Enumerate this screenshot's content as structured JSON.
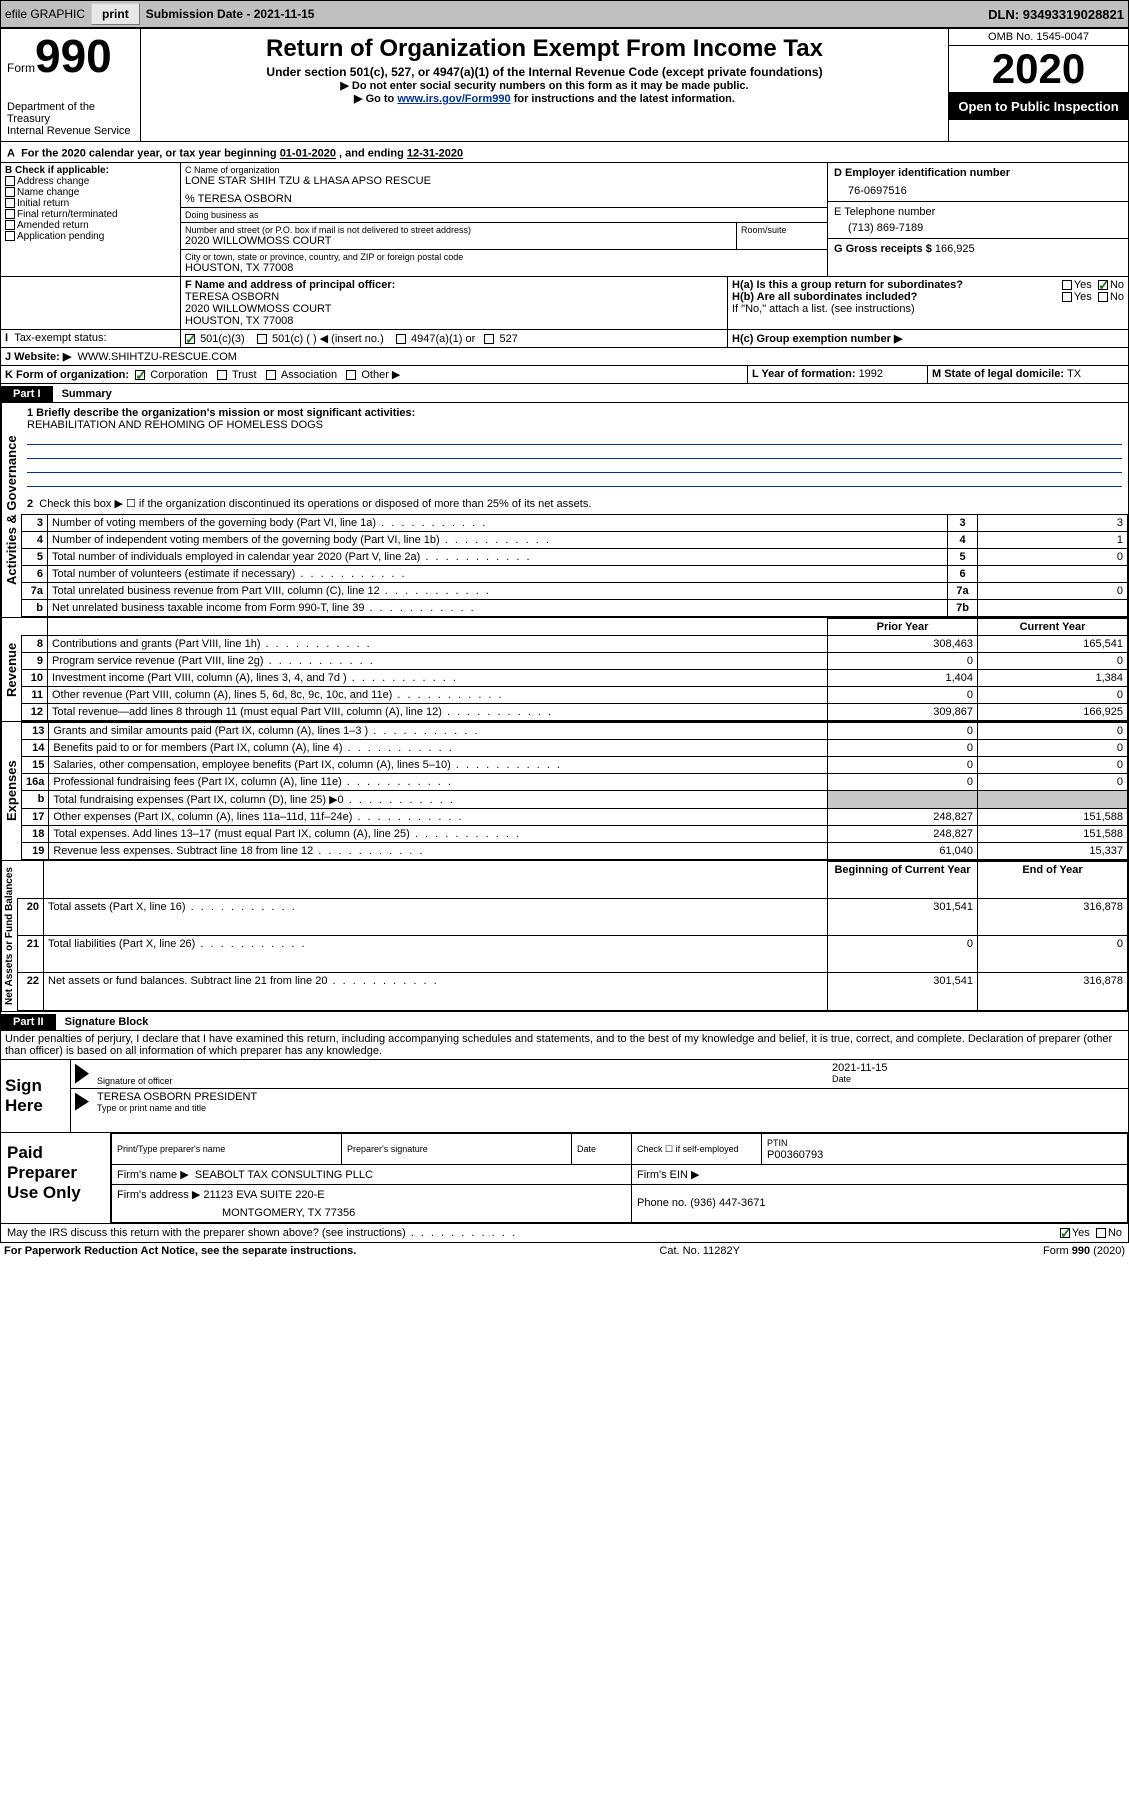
{
  "topbar": {
    "efile": "efile GRAPHIC",
    "print": "print",
    "subdate_lbl": "Submission Date - ",
    "subdate": "2021-11-15",
    "dln_lbl": "DLN: ",
    "dln": "93493319028821"
  },
  "header": {
    "form_word": "Form",
    "form_num": "990",
    "dept": "Department of the Treasury\nInternal Revenue Service",
    "title": "Return of Organization Exempt From Income Tax",
    "sub1": "Under section 501(c), 527, or 4947(a)(1) of the Internal Revenue Code (except private foundations)",
    "sub2": "▶ Do not enter social security numbers on this form as it may be made public.",
    "sub3a": "▶ Go to ",
    "sub3link": "www.irs.gov/Form990",
    "sub3b": " for instructions and the latest information.",
    "omb": "OMB No. 1545-0047",
    "year": "2020",
    "open": "Open to Public Inspection"
  },
  "period": {
    "label_a": "For the 2020 calendar year, or tax year beginning ",
    "start": "01-01-2020",
    "label_b": "   , and ending ",
    "end": "12-31-2020"
  },
  "B": {
    "hdr": "B Check if applicable:",
    "items": [
      "Address change",
      "Name change",
      "Initial return",
      "Final return/terminated",
      "Amended return",
      "Application pending"
    ]
  },
  "C": {
    "name_lbl": "C Name of organization",
    "name": "LONE STAR SHIH TZU & LHASA APSO RESCUE",
    "care_lbl": "% TERESA OSBORN",
    "dba_lbl": "Doing business as",
    "street_lbl": "Number and street (or P.O. box if mail is not delivered to street address)",
    "room_lbl": "Room/suite",
    "street": "2020 WILLOWMOSS COURT",
    "city_lbl": "City or town, state or province, country, and ZIP or foreign postal code",
    "city": "HOUSTON, TX  77008"
  },
  "D": {
    "lbl": "D Employer identification number",
    "val": "76-0697516"
  },
  "E": {
    "lbl": "E Telephone number",
    "val": "(713) 869-7189"
  },
  "G": {
    "lbl": "G Gross receipts $ ",
    "val": "166,925"
  },
  "F": {
    "lbl": "F Name and address of principal officer:",
    "name": "TERESA OSBORN",
    "addr1": "2020 WILLOWMOSS COURT",
    "addr2": "HOUSTON, TX  77008"
  },
  "H": {
    "a": "H(a)  Is this a group return for subordinates?",
    "b": "H(b)  Are all subordinates included?",
    "b_note": "If \"No,\" attach a list. (see instructions)",
    "c": "H(c)  Group exemption number ▶",
    "yes": "Yes",
    "no": "No"
  },
  "I": {
    "lbl": "Tax-exempt status:",
    "opt1": "501(c)(3)",
    "opt2": "501(c) (   ) ◀ (insert no.)",
    "opt3": "4947(a)(1) or",
    "opt4": "527"
  },
  "J": {
    "lbl": "J    Website: ▶",
    "val": "WWW.SHIHTZU-RESCUE.COM"
  },
  "K": {
    "lbl": "K Form of organization:",
    "corp": "Corporation",
    "trust": "Trust",
    "assoc": "Association",
    "other": "Other ▶"
  },
  "L": {
    "lbl": "L Year of formation: ",
    "val": "1992"
  },
  "M": {
    "lbl": "M State of legal domicile: ",
    "val": "TX"
  },
  "partI": {
    "bar": "Part I",
    "title": "Summary",
    "q1_lbl": "1  Briefly describe the organization's mission or most significant activities:",
    "q1_val": "REHABILITATION AND REHOMING OF HOMELESS DOGS",
    "q2": "Check this box ▶ ☐  if the organization discontinued its operations or disposed of more than 25% of its net assets.",
    "rows_gov": [
      {
        "n": "3",
        "t": "Number of voting members of the governing body (Part VI, line 1a)",
        "r": "3",
        "v": "3"
      },
      {
        "n": "4",
        "t": "Number of independent voting members of the governing body (Part VI, line 1b)",
        "r": "4",
        "v": "1"
      },
      {
        "n": "5",
        "t": "Total number of individuals employed in calendar year 2020 (Part V, line 2a)",
        "r": "5",
        "v": "0"
      },
      {
        "n": "6",
        "t": "Total number of volunteers (estimate if necessary)",
        "r": "6",
        "v": ""
      },
      {
        "n": "7a",
        "t": "Total unrelated business revenue from Part VIII, column (C), line 12",
        "r": "7a",
        "v": "0"
      },
      {
        "n": "b",
        "t": "Net unrelated business taxable income from Form 990-T, line 39",
        "r": "7b",
        "v": ""
      }
    ],
    "hdr_prior": "Prior Year",
    "hdr_curr": "Current Year",
    "rows_rev": [
      {
        "n": "8",
        "t": "Contributions and grants (Part VIII, line 1h)",
        "p": "308,463",
        "c": "165,541"
      },
      {
        "n": "9",
        "t": "Program service revenue (Part VIII, line 2g)",
        "p": "0",
        "c": "0"
      },
      {
        "n": "10",
        "t": "Investment income (Part VIII, column (A), lines 3, 4, and 7d )",
        "p": "1,404",
        "c": "1,384"
      },
      {
        "n": "11",
        "t": "Other revenue (Part VIII, column (A), lines 5, 6d, 8c, 9c, 10c, and 11e)",
        "p": "0",
        "c": "0"
      },
      {
        "n": "12",
        "t": "Total revenue—add lines 8 through 11 (must equal Part VIII, column (A), line 12)",
        "p": "309,867",
        "c": "166,925"
      }
    ],
    "rows_exp": [
      {
        "n": "13",
        "t": "Grants and similar amounts paid (Part IX, column (A), lines 1–3 )",
        "p": "0",
        "c": "0"
      },
      {
        "n": "14",
        "t": "Benefits paid to or for members (Part IX, column (A), line 4)",
        "p": "0",
        "c": "0"
      },
      {
        "n": "15",
        "t": "Salaries, other compensation, employee benefits (Part IX, column (A), lines 5–10)",
        "p": "0",
        "c": "0"
      },
      {
        "n": "16a",
        "t": "Professional fundraising fees (Part IX, column (A), line 11e)",
        "p": "0",
        "c": "0"
      },
      {
        "n": "b",
        "t": "Total fundraising expenses (Part IX, column (D), line 25) ▶0",
        "p": "",
        "c": "",
        "shade": true
      },
      {
        "n": "17",
        "t": "Other expenses (Part IX, column (A), lines 11a–11d, 11f–24e)",
        "p": "248,827",
        "c": "151,588"
      },
      {
        "n": "18",
        "t": "Total expenses. Add lines 13–17 (must equal Part IX, column (A), line 25)",
        "p": "248,827",
        "c": "151,588"
      },
      {
        "n": "19",
        "t": "Revenue less expenses. Subtract line 18 from line 12",
        "p": "61,040",
        "c": "15,337"
      }
    ],
    "hdr_beg": "Beginning of Current Year",
    "hdr_end": "End of Year",
    "rows_net": [
      {
        "n": "20",
        "t": "Total assets (Part X, line 16)",
        "p": "301,541",
        "c": "316,878"
      },
      {
        "n": "21",
        "t": "Total liabilities (Part X, line 26)",
        "p": "0",
        "c": "0"
      },
      {
        "n": "22",
        "t": "Net assets or fund balances. Subtract line 21 from line 20",
        "p": "301,541",
        "c": "316,878"
      }
    ],
    "side_gov": "Activities & Governance",
    "side_rev": "Revenue",
    "side_exp": "Expenses",
    "side_net": "Net Assets or Fund Balances"
  },
  "partII": {
    "bar": "Part II",
    "title": "Signature Block",
    "decl": "Under penalties of perjury, I declare that I have examined this return, including accompanying schedules and statements, and to the best of my knowledge and belief, it is true, correct, and complete. Declaration of preparer (other than officer) is based on all information of which preparer has any knowledge.",
    "sign_here": "Sign Here",
    "sig_of_officer": "Signature of officer",
    "date_lbl": "Date",
    "sig_date": "2021-11-15",
    "officer_name": "TERESA OSBORN  PRESIDENT",
    "type_lbl": "Type or print name and title",
    "paid": "Paid Preparer Use Only",
    "prep_name_lbl": "Print/Type preparer's name",
    "prep_sig_lbl": "Preparer's signature",
    "prep_date_lbl": "Date",
    "check_self": "Check ☐ if self-employed",
    "ptin_lbl": "PTIN",
    "ptin": "P00360793",
    "firm_name_lbl": "Firm's name   ▶",
    "firm_name": "SEABOLT TAX CONSULTING PLLC",
    "firm_ein_lbl": "Firm's EIN ▶",
    "firm_addr_lbl": "Firm's address ▶",
    "firm_addr1": "21123 EVA SUITE 220-E",
    "firm_addr2": "MONTGOMERY, TX  77356",
    "phone_lbl": "Phone no. ",
    "phone": "(936) 447-3671",
    "discuss": "May the IRS discuss this return with the preparer shown above? (see instructions)",
    "yes": "Yes",
    "no": "No"
  },
  "footer": {
    "left": "For Paperwork Reduction Act Notice, see the separate instructions.",
    "mid": "Cat. No. 11282Y",
    "right": "Form 990 (2020)"
  }
}
